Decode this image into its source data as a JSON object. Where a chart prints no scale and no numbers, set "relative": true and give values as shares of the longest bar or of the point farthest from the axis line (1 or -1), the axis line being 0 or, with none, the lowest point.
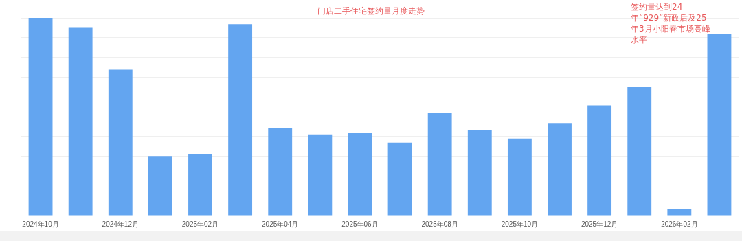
{
  "chart_data": {
    "type": "bar",
    "title": "门店二手住宅签约量月度走势",
    "categories": [
      "2024年10月",
      null,
      "2024年12月",
      null,
      "2025年02月",
      null,
      "2025年04月",
      null,
      "2025年06月",
      null,
      "2025年08月",
      null,
      "2025年10月",
      null,
      "2025年12月",
      null,
      "2026年02月",
      null
    ],
    "values": [
      1.0,
      0.95,
      0.738,
      0.301,
      0.312,
      0.968,
      0.443,
      0.411,
      0.418,
      0.369,
      0.518,
      0.433,
      0.39,
      0.468,
      0.557,
      0.652,
      0.032,
      0.918
    ],
    "color": "#63a5f0",
    "relative": true,
    "grid": "y",
    "annotations": [
      "签约量达到24年“929”新政后及25年3月小阳春市场高峰水平"
    ]
  }
}
